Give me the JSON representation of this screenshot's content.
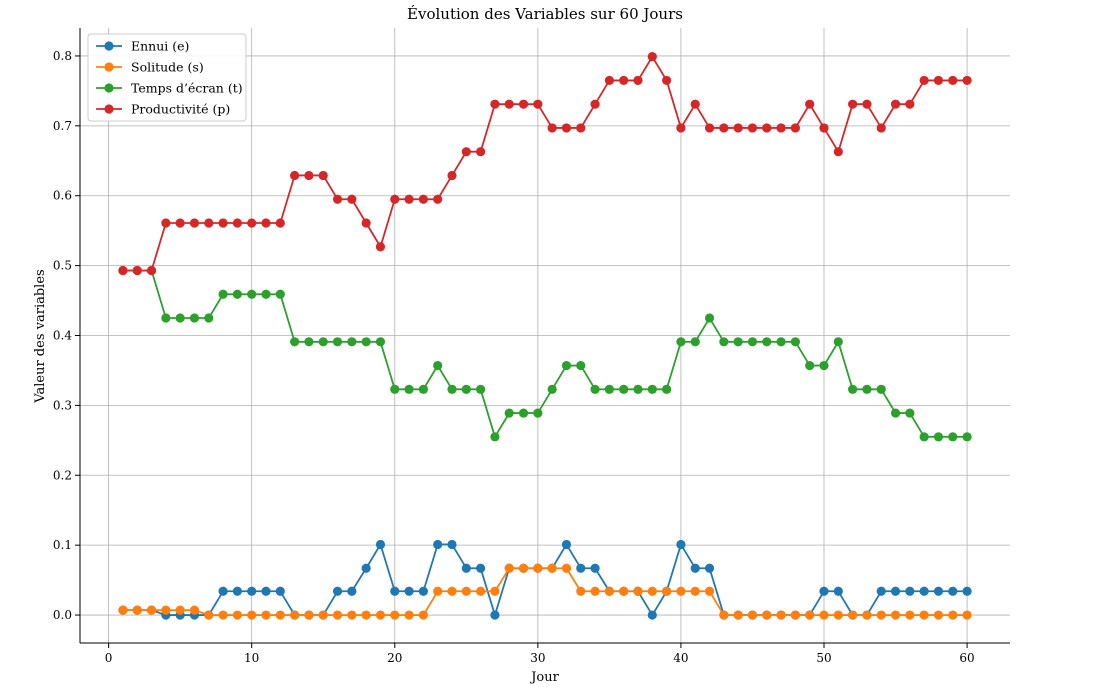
{
  "chart_data": {
    "type": "line",
    "title": "Évolution des Variables sur 60 Jours",
    "xlabel": "Jour",
    "ylabel": "Valeur des variables",
    "xlim": [
      -2,
      63
    ],
    "ylim": [
      -0.04,
      0.84
    ],
    "xticks": [
      0,
      10,
      20,
      30,
      40,
      50,
      60
    ],
    "yticks": [
      0.0,
      0.1,
      0.2,
      0.3,
      0.4,
      0.5,
      0.6,
      0.7,
      0.8
    ],
    "grid": true,
    "legend_position": "top-left",
    "x": [
      1,
      2,
      3,
      4,
      5,
      6,
      7,
      8,
      9,
      10,
      11,
      12,
      13,
      14,
      15,
      16,
      17,
      18,
      19,
      20,
      21,
      22,
      23,
      24,
      25,
      26,
      27,
      28,
      29,
      30,
      31,
      32,
      33,
      34,
      35,
      36,
      37,
      38,
      39,
      40,
      41,
      42,
      43,
      44,
      45,
      46,
      47,
      48,
      49,
      50,
      51,
      52,
      53,
      54,
      55,
      56,
      57,
      58,
      59,
      60
    ],
    "series": [
      {
        "name": "Ennui (e)",
        "color": "#1f77b4",
        "values": [
          0.007,
          0.007,
          0.007,
          0.0,
          0.0,
          0.0,
          0.0,
          0.034,
          0.034,
          0.034,
          0.034,
          0.034,
          0.0,
          0.0,
          0.0,
          0.034,
          0.034,
          0.067,
          0.101,
          0.034,
          0.034,
          0.034,
          0.101,
          0.101,
          0.067,
          0.067,
          0.0,
          0.067,
          0.067,
          0.067,
          0.067,
          0.101,
          0.067,
          0.067,
          0.034,
          0.034,
          0.034,
          0.0,
          0.034,
          0.101,
          0.067,
          0.067,
          0.0,
          0.0,
          0.0,
          0.0,
          0.0,
          0.0,
          0.0,
          0.034,
          0.034,
          0.0,
          0.0,
          0.034,
          0.034,
          0.034,
          0.034,
          0.034,
          0.034,
          0.034
        ]
      },
      {
        "name": "Solitude (s)",
        "color": "#ff7f0e",
        "values": [
          0.007,
          0.007,
          0.007,
          0.007,
          0.007,
          0.007,
          0.0,
          0.0,
          0.0,
          0.0,
          0.0,
          0.0,
          0.0,
          0.0,
          0.0,
          0.0,
          0.0,
          0.0,
          0.0,
          0.0,
          0.0,
          0.0,
          0.034,
          0.034,
          0.034,
          0.034,
          0.034,
          0.067,
          0.067,
          0.067,
          0.067,
          0.067,
          0.034,
          0.034,
          0.034,
          0.034,
          0.034,
          0.034,
          0.034,
          0.034,
          0.034,
          0.034,
          0.0,
          0.0,
          0.0,
          0.0,
          0.0,
          0.0,
          0.0,
          0.0,
          0.0,
          0.0,
          0.0,
          0.0,
          0.0,
          0.0,
          0.0,
          0.0,
          0.0,
          0.0
        ]
      },
      {
        "name": "Temps d’écran (t)",
        "color": "#2ca02c",
        "values": [
          0.493,
          0.493,
          0.493,
          0.425,
          0.425,
          0.425,
          0.425,
          0.459,
          0.459,
          0.459,
          0.459,
          0.459,
          0.391,
          0.391,
          0.391,
          0.391,
          0.391,
          0.391,
          0.391,
          0.323,
          0.323,
          0.323,
          0.357,
          0.323,
          0.323,
          0.323,
          0.255,
          0.289,
          0.289,
          0.289,
          0.323,
          0.357,
          0.357,
          0.323,
          0.323,
          0.323,
          0.323,
          0.323,
          0.323,
          0.391,
          0.391,
          0.425,
          0.391,
          0.391,
          0.391,
          0.391,
          0.391,
          0.391,
          0.357,
          0.357,
          0.391,
          0.323,
          0.323,
          0.323,
          0.289,
          0.289,
          0.255,
          0.255,
          0.255,
          0.255
        ]
      },
      {
        "name": "Productivité (p)",
        "color": "#d62728",
        "values": [
          0.493,
          0.493,
          0.493,
          0.561,
          0.561,
          0.561,
          0.561,
          0.561,
          0.561,
          0.561,
          0.561,
          0.561,
          0.629,
          0.629,
          0.629,
          0.595,
          0.595,
          0.561,
          0.527,
          0.595,
          0.595,
          0.595,
          0.595,
          0.629,
          0.663,
          0.663,
          0.731,
          0.731,
          0.731,
          0.731,
          0.697,
          0.697,
          0.697,
          0.731,
          0.765,
          0.765,
          0.765,
          0.799,
          0.765,
          0.697,
          0.731,
          0.697,
          0.697,
          0.697,
          0.697,
          0.697,
          0.697,
          0.697,
          0.731,
          0.697,
          0.663,
          0.731,
          0.731,
          0.697,
          0.731,
          0.731,
          0.765,
          0.765,
          0.765,
          0.765
        ]
      }
    ]
  }
}
